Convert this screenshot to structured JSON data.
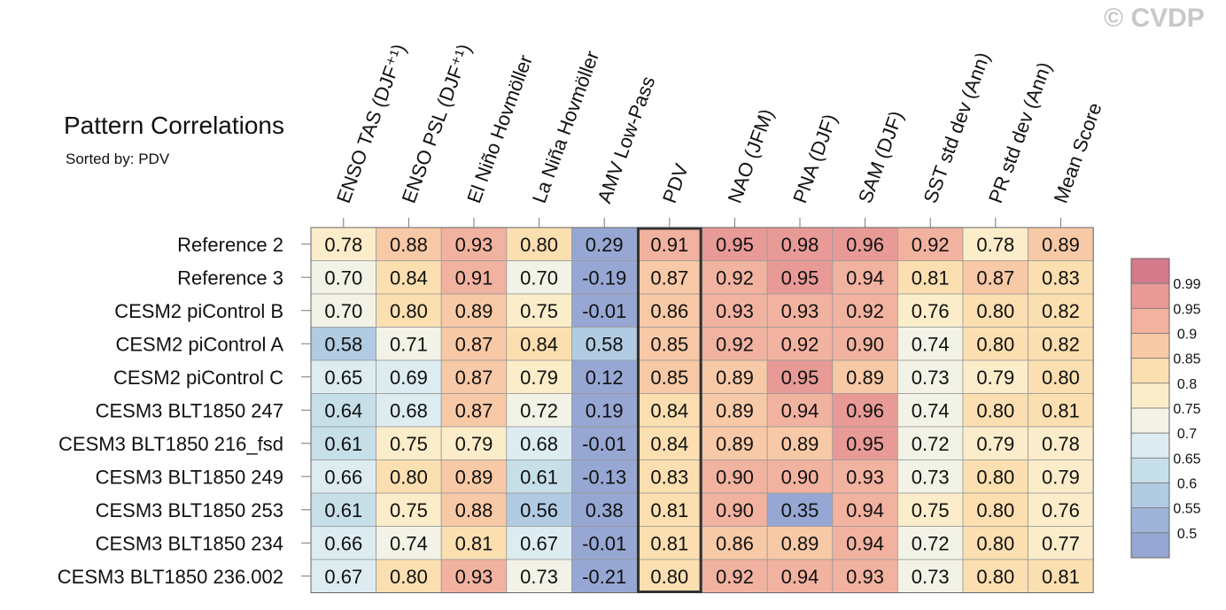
{
  "watermark": "© CVDP",
  "chart_data": {
    "type": "heatmap",
    "title": "Pattern Correlations",
    "subtitle": "Sorted by: PDV",
    "highlighted_column": "PDV",
    "columns": [
      "ENSO TAS (DJF⁺¹)",
      "ENSO PSL (DJF⁺¹)",
      "El Niño Hovmöller",
      "La Niña Hovmöller",
      "AMV Low-Pass",
      "PDV",
      "NAO (JFM)",
      "PNA (DJF)",
      "SAM (DJF)",
      "SST std dev (Ann)",
      "PR std dev (Ann)",
      "Mean Score"
    ],
    "rows": [
      "Reference 2",
      "Reference 3",
      "CESM2 piControl B",
      "CESM2 piControl A",
      "CESM2 piControl C",
      "CESM3 BLT1850 247",
      "CESM3 BLT1850 216_fsd",
      "CESM3 BLT1850 249",
      "CESM3 BLT1850 253",
      "CESM3 BLT1850 234",
      "CESM3 BLT1850 236.002"
    ],
    "values": [
      [
        "0.78",
        "0.88",
        "0.93",
        "0.80",
        "0.29",
        "0.91",
        "0.95",
        "0.98",
        "0.96",
        "0.92",
        "0.78",
        "0.89"
      ],
      [
        "0.70",
        "0.84",
        "0.91",
        "0.70",
        "-0.19",
        "0.87",
        "0.92",
        "0.95",
        "0.94",
        "0.81",
        "0.87",
        "0.83"
      ],
      [
        "0.70",
        "0.80",
        "0.89",
        "0.75",
        "-0.01",
        "0.86",
        "0.93",
        "0.93",
        "0.92",
        "0.76",
        "0.80",
        "0.82"
      ],
      [
        "0.58",
        "0.71",
        "0.87",
        "0.84",
        "0.58",
        "0.85",
        "0.92",
        "0.92",
        "0.90",
        "0.74",
        "0.80",
        "0.82"
      ],
      [
        "0.65",
        "0.69",
        "0.87",
        "0.79",
        "0.12",
        "0.85",
        "0.89",
        "0.95",
        "0.89",
        "0.73",
        "0.79",
        "0.80"
      ],
      [
        "0.64",
        "0.68",
        "0.87",
        "0.72",
        "0.19",
        "0.84",
        "0.89",
        "0.94",
        "0.96",
        "0.74",
        "0.80",
        "0.81"
      ],
      [
        "0.61",
        "0.75",
        "0.79",
        "0.68",
        "-0.01",
        "0.84",
        "0.89",
        "0.89",
        "0.95",
        "0.72",
        "0.79",
        "0.78"
      ],
      [
        "0.66",
        "0.80",
        "0.89",
        "0.61",
        "-0.13",
        "0.83",
        "0.90",
        "0.90",
        "0.93",
        "0.73",
        "0.80",
        "0.79"
      ],
      [
        "0.61",
        "0.75",
        "0.88",
        "0.56",
        "0.38",
        "0.81",
        "0.90",
        "0.35",
        "0.94",
        "0.75",
        "0.80",
        "0.76"
      ],
      [
        "0.66",
        "0.74",
        "0.81",
        "0.67",
        "-0.01",
        "0.81",
        "0.86",
        "0.89",
        "0.94",
        "0.72",
        "0.80",
        "0.77"
      ],
      [
        "0.67",
        "0.80",
        "0.93",
        "0.73",
        "-0.21",
        "0.80",
        "0.92",
        "0.94",
        "0.93",
        "0.73",
        "0.80",
        "0.81"
      ]
    ],
    "colorbar": {
      "labels": [
        "0.99",
        "0.95",
        "0.9",
        "0.85",
        "0.8",
        "0.75",
        "0.7",
        "0.65",
        "0.6",
        "0.55",
        "0.5"
      ],
      "colors": [
        "#d37b8a",
        "#e89a96",
        "#f2b2a0",
        "#f8c9a6",
        "#fbdfb0",
        "#fbedc9",
        "#f2f2e6",
        "#dcecf1",
        "#c7dfe9",
        "#b1cbe2",
        "#9fb3d8",
        "#96a7d3"
      ]
    }
  }
}
